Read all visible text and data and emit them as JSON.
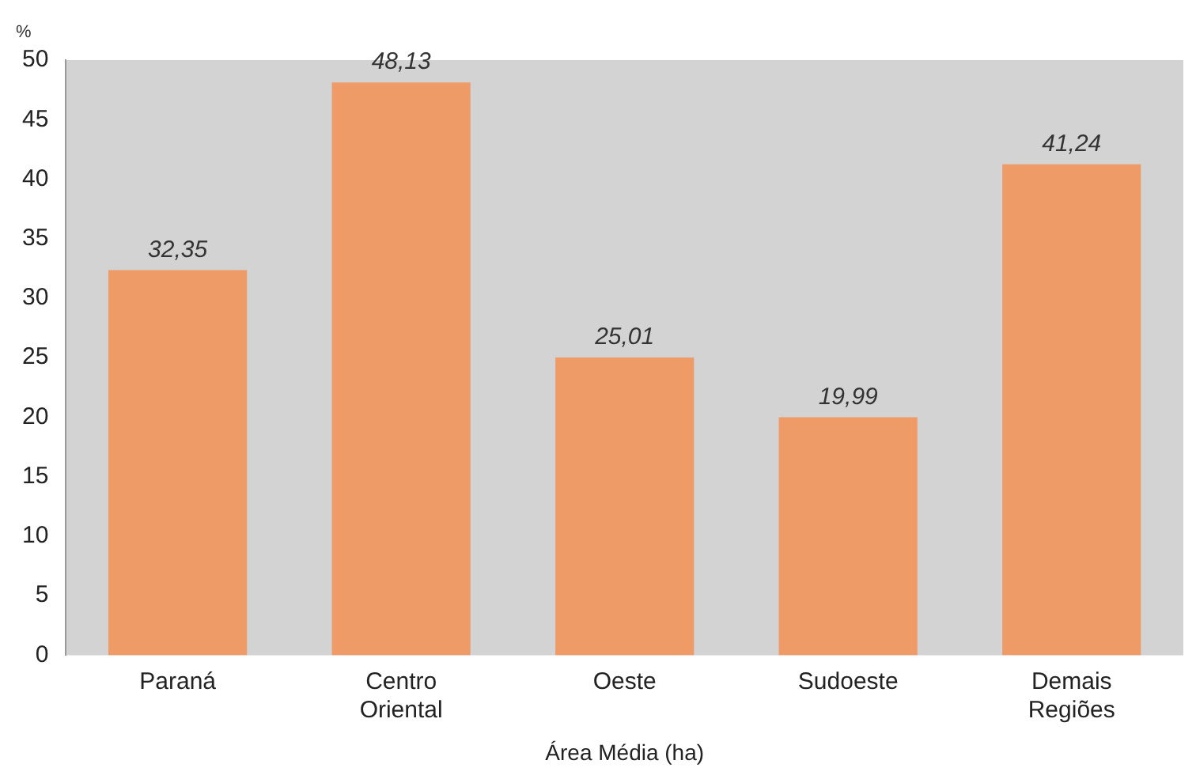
{
  "chart_data": {
    "type": "bar",
    "xlabel": "Área Média (ha)",
    "ylabel": "%",
    "categories": [
      "Paraná",
      "Centro Oriental",
      "Oeste",
      "Sudoeste",
      "Demais Regiões"
    ],
    "values": [
      32.35,
      48.13,
      25.01,
      19.99,
      41.24
    ],
    "value_labels": [
      "32,35",
      "48,13",
      "25,01",
      "19,99",
      "41,24"
    ],
    "color": "#ef9b68",
    "ylim": [
      0,
      50
    ],
    "yticks": [
      0,
      5,
      10,
      15,
      20,
      25,
      30,
      35,
      40,
      45,
      50
    ],
    "grid": false,
    "legend": false
  }
}
